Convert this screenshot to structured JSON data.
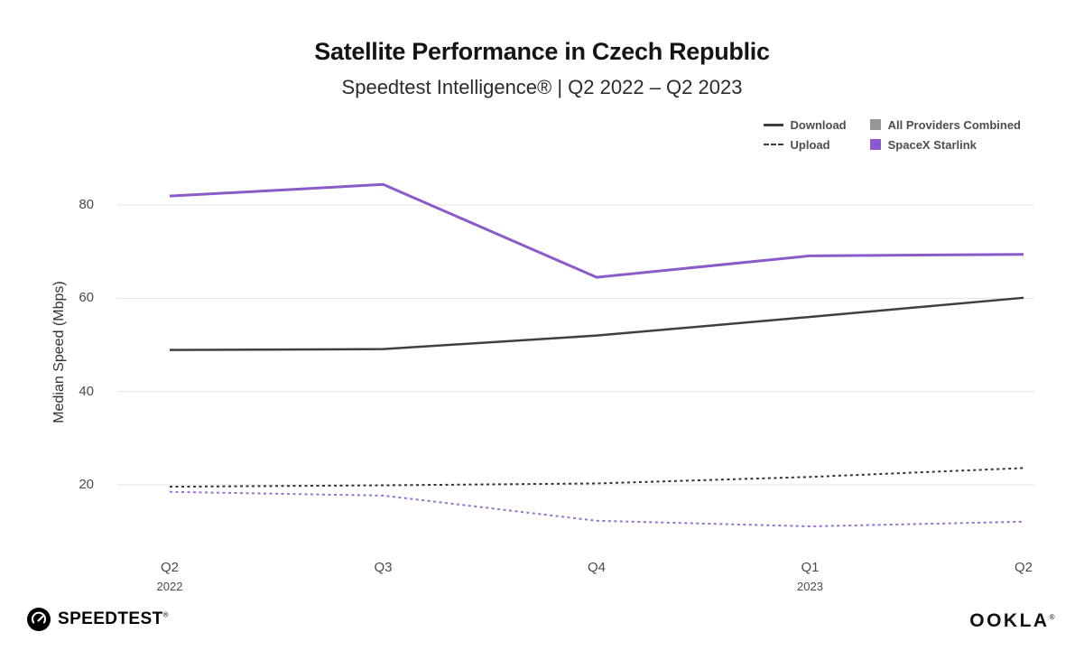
{
  "chart_data": {
    "type": "line",
    "title": "Satellite Performance in Czech Republic",
    "subtitle": "Speedtest Intelligence® | Q2 2022 – Q2 2023",
    "ylabel": "Median Speed (Mbps)",
    "ylim": [
      5,
      90
    ],
    "yticks": [
      20,
      40,
      60,
      80
    ],
    "grid": "horizontal",
    "legend_position": "top-right",
    "x_categories": [
      "Q2 2022",
      "Q3 2022",
      "Q4 2022",
      "Q1 2023",
      "Q2 2023"
    ],
    "x_tick_labels": [
      "Q2",
      "Q3",
      "Q4",
      "Q1",
      "Q2"
    ],
    "x_year_labels": [
      {
        "index": 0,
        "label": "2022"
      },
      {
        "index": 3,
        "label": "2023"
      }
    ],
    "legend": {
      "download": "Download",
      "upload": "Upload",
      "all_providers": "All Providers Combined",
      "starlink": "SpaceX Starlink"
    },
    "series": [
      {
        "id": "starlink-download",
        "name": "SpaceX Starlink — Download",
        "style": "solid",
        "color": "#8a5bc9",
        "width": 3,
        "values": [
          81.9,
          84.4,
          64.5,
          69.1,
          69.4
        ]
      },
      {
        "id": "all-providers-download",
        "name": "All Providers Combined — Download",
        "style": "solid",
        "color": "#3f3f3f",
        "width": 2.5,
        "values": [
          48.9,
          49.1,
          52.0,
          56.0,
          60.1
        ]
      },
      {
        "id": "all-providers-upload",
        "name": "All Providers Combined — Upload",
        "style": "dashed",
        "color": "#333333",
        "width": 2,
        "values": [
          19.6,
          19.9,
          20.3,
          21.7,
          23.6
        ]
      },
      {
        "id": "starlink-upload",
        "name": "SpaceX Starlink — Upload",
        "style": "dashed",
        "color": "#9671cf",
        "width": 2,
        "values": [
          18.5,
          17.7,
          12.3,
          11.1,
          12.1
        ]
      }
    ]
  },
  "colors": {
    "grid": "#e4e4e4",
    "tick_text": "#4a4a4a",
    "legend_line": "#3f3f3f",
    "all_providers_square": "#969696",
    "starlink_square": "#8a5bc9"
  },
  "footer": {
    "speedtest_label": "SPEEDTEST",
    "speedtest_mark": "®",
    "ookla_label": "OOKLA",
    "ookla_mark": "®"
  }
}
